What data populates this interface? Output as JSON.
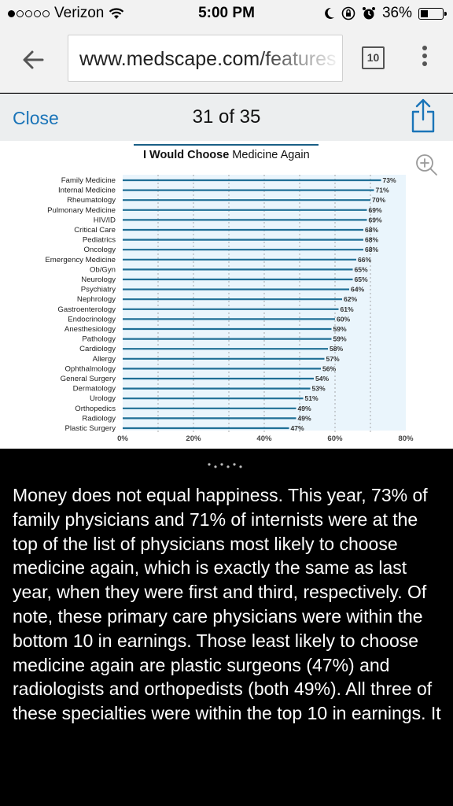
{
  "status_bar": {
    "carrier": "Verizon",
    "time": "5:00 PM",
    "battery": "36%",
    "battery_level": 0.36
  },
  "browser": {
    "url": "www.medscape.com/features",
    "tab_count": "10",
    "icons": [
      "back-arrow-icon",
      "tabs-icon",
      "overflow-menu-icon"
    ]
  },
  "viewer": {
    "close_label": "Close",
    "counter": "31 of 35",
    "icons": [
      "share-icon",
      "zoom-in-icon"
    ]
  },
  "chart_data": {
    "type": "bar",
    "orientation": "horizontal",
    "title_bold": "I Would Choose",
    "title_rest": " Medicine Again",
    "categories": [
      "Family Medicine",
      "Internal Medicine",
      "Rheumatology",
      "Pulmonary Medicine",
      "HIV/ID",
      "Critical Care",
      "Pediatrics",
      "Oncology",
      "Emergency Medicine",
      "Ob/Gyn",
      "Neurology",
      "Psychiatry",
      "Nephrology",
      "Gastroenterology",
      "Endocrinology",
      "Anesthesiology",
      "Pathology",
      "Cardiology",
      "Allergy",
      "Ophthalmology",
      "General Surgery",
      "Dermatology",
      "Urology",
      "Orthopedics",
      "Radiology",
      "Plastic Surgery"
    ],
    "values": [
      73,
      71,
      70,
      69,
      69,
      68,
      68,
      68,
      66,
      65,
      65,
      64,
      62,
      61,
      60,
      59,
      59,
      58,
      57,
      56,
      54,
      53,
      51,
      49,
      49,
      47
    ],
    "value_labels": [
      "73%",
      "71%",
      "70%",
      "69%",
      "69%",
      "68%",
      "68%",
      "68%",
      "66%",
      "65%",
      "65%",
      "64%",
      "62%",
      "61%",
      "60%",
      "59%",
      "59%",
      "58%",
      "57%",
      "56%",
      "54%",
      "53%",
      "51%",
      "49%",
      "49%",
      "47%"
    ],
    "x_ticks": [
      "0%",
      "20%",
      "40%",
      "60%",
      "80%"
    ],
    "xlim": [
      0,
      80
    ],
    "grid": true,
    "colors": {
      "bar": "#1f6f96",
      "background": "#eaf5fc",
      "grid": "#888888",
      "title_rule": "#1a5f86"
    }
  },
  "caption": {
    "text": "Money does not equal happiness. This year, 73% of family physicians and 71% of internists were at the top of the list of physicians most likely to choose medicine again, which is exactly the same as last year, when they were first and third, respectively. Of note, these primary care physicians were within the bottom 10 in earnings. Those least likely to choose medicine again are plastic surgeons (47%) and radiologists and orthopedists (both 49%). All three of these specialties were within the top 10 in earnings. It"
  }
}
